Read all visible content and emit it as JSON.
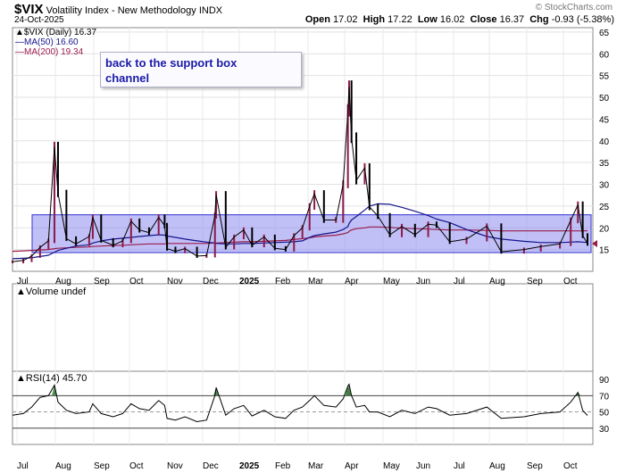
{
  "header": {
    "symbol": "$VIX",
    "name": "Volatility Index - New Methodology",
    "exchange": "INDX",
    "date": "24-Oct-2025",
    "open_label": "Open",
    "open": "17.02",
    "high_label": "High",
    "high": "17.22",
    "low_label": "Low",
    "low": "16.02",
    "close_label": "Close",
    "close": "16.37",
    "chg_label": "Chg",
    "chg": "-0.93 (-5.38%)",
    "brand": "© StockCharts.com"
  },
  "legend": {
    "price": "$VIX (Daily) 16.37",
    "ma50": "MA(50) 16.60",
    "ma200": "MA(200) 19.34",
    "volume": "Volume undef",
    "rsi": "RSI(14) 45.70"
  },
  "annotation": {
    "line1": "back to the support box",
    "line2": "channel"
  },
  "colors": {
    "price": "#000000",
    "price_up": "#8b1a4a",
    "ma50": "#14148c",
    "ma200": "#9b1b4b",
    "box_fill": "#8c8cf0",
    "box_stroke": "#5050d8",
    "rsi_line": "#000000",
    "rsi_overbought": "#3a7a3a"
  },
  "chart_data": [
    {
      "type": "line",
      "title": "$VIX (Daily) 16.37",
      "x_tick_labels": [
        "Jul",
        "Aug",
        "Sep",
        "Oct",
        "Nov",
        "Dec",
        "2025",
        "Feb",
        "Mar",
        "Apr",
        "May",
        "Jun",
        "Jul",
        "Aug",
        "Sep",
        "Oct"
      ],
      "y_ticks": [
        15,
        20,
        25,
        30,
        35,
        40,
        45,
        50,
        55,
        60,
        65
      ],
      "ylim": [
        10,
        66
      ],
      "grid": true,
      "legend_position": "top-left",
      "x": [
        "2024-07-01",
        "2024-07-10",
        "2024-07-17",
        "2024-07-24",
        "2024-07-31",
        "2024-08-05",
        "2024-08-08",
        "2024-08-15",
        "2024-08-23",
        "2024-09-03",
        "2024-09-06",
        "2024-09-13",
        "2024-09-23",
        "2024-10-01",
        "2024-10-08",
        "2024-10-15",
        "2024-10-23",
        "2024-10-31",
        "2024-11-05",
        "2024-11-07",
        "2024-11-14",
        "2024-11-22",
        "2024-12-02",
        "2024-12-10",
        "2024-12-17",
        "2024-12-18",
        "2024-12-26",
        "2025-01-02",
        "2025-01-10",
        "2025-01-17",
        "2025-01-27",
        "2025-02-05",
        "2025-02-14",
        "2025-02-21",
        "2025-02-28",
        "2025-03-06",
        "2025-03-10",
        "2025-03-18",
        "2025-03-28",
        "2025-04-03",
        "2025-04-07",
        "2025-04-08",
        "2025-04-10",
        "2025-04-14",
        "2025-04-21",
        "2025-04-25",
        "2025-05-02",
        "2025-05-12",
        "2025-05-22",
        "2025-06-02",
        "2025-06-13",
        "2025-06-20",
        "2025-07-01",
        "2025-07-15",
        "2025-08-01",
        "2025-08-13",
        "2025-09-01",
        "2025-09-15",
        "2025-10-01",
        "2025-10-10",
        "2025-10-16",
        "2025-10-20",
        "2025-10-24"
      ],
      "series": [
        {
          "name": "$VIX (Daily) 16.37",
          "values": [
            12.2,
            12.5,
            13.5,
            15.5,
            17.0,
            38.6,
            27.9,
            17.5,
            16.3,
            18.0,
            22.4,
            17.1,
            16.0,
            17.0,
            21.5,
            19.5,
            18.9,
            22.4,
            20.5,
            15.2,
            14.6,
            15.2,
            13.5,
            13.6,
            22.8,
            27.6,
            15.5,
            17.9,
            19.5,
            16.0,
            17.9,
            15.3,
            15.0,
            18.2,
            20.0,
            24.9,
            27.8,
            21.8,
            21.8,
            30.0,
            46.98,
            52.3,
            40.7,
            30.9,
            33.8,
            24.8,
            22.7,
            18.4,
            20.3,
            18.4,
            20.8,
            20.6,
            16.8,
            17.4,
            20.4,
            14.5,
            15.0,
            15.7,
            16.3,
            21.7,
            25.3,
            18.2,
            16.37
          ]
        },
        {
          "name": "MA(50) 16.60",
          "values": [
            12.9,
            13.0,
            13.1,
            13.4,
            13.7,
            14.4,
            14.8,
            15.3,
            15.8,
            16.1,
            16.5,
            17.0,
            17.4,
            17.6,
            17.8,
            18.0,
            18.2,
            18.4,
            18.3,
            18.1,
            17.8,
            17.4,
            17.0,
            16.7,
            16.5,
            16.4,
            16.3,
            16.3,
            16.4,
            16.4,
            16.5,
            16.6,
            16.7,
            16.8,
            17.0,
            17.8,
            18.2,
            18.6,
            19.0,
            19.6,
            20.3,
            21.0,
            21.8,
            22.6,
            24.1,
            25.0,
            25.5,
            25.4,
            24.7,
            23.8,
            22.8,
            22.0,
            21.2,
            19.6,
            18.0,
            17.4,
            16.9,
            16.6,
            16.6,
            16.7,
            16.8,
            16.7,
            16.6
          ]
        },
        {
          "name": "MA(200) 19.34",
          "values": [
            14.6,
            14.7,
            14.8,
            14.9,
            15.0,
            15.2,
            15.3,
            15.4,
            15.5,
            15.6,
            15.7,
            15.8,
            15.9,
            16.0,
            16.1,
            16.2,
            16.3,
            16.3,
            16.3,
            16.4,
            16.4,
            16.4,
            16.4,
            16.4,
            16.5,
            16.5,
            16.6,
            16.7,
            16.8,
            16.8,
            16.9,
            17.0,
            17.1,
            17.3,
            17.5,
            17.7,
            17.9,
            18.1,
            18.3,
            18.6,
            18.9,
            19.2,
            19.5,
            19.8,
            20.0,
            20.2,
            20.2,
            20.1,
            19.9,
            19.8,
            19.7,
            19.6,
            19.5,
            19.5,
            19.4,
            19.3,
            19.3,
            19.3,
            19.3,
            19.3,
            19.3,
            19.3,
            19.34
          ]
        }
      ],
      "annotations": [
        "back to the support box",
        "channel"
      ],
      "support_box": {
        "y_from": 14.3,
        "y_to": 23.0
      }
    },
    {
      "type": "line",
      "title": "RSI(14) 45.70",
      "x_tick_labels": [
        "Jul",
        "Aug",
        "Sep",
        "Oct",
        "Nov",
        "Dec",
        "2025",
        "Feb",
        "Mar",
        "Apr",
        "May",
        "Jun",
        "Jul",
        "Aug",
        "Sep",
        "Oct"
      ],
      "y_ticks": [
        30,
        50,
        70,
        90
      ],
      "ylim": [
        10,
        100
      ],
      "reference_lines": [
        70,
        50,
        30
      ],
      "series": [
        {
          "name": "RSI(14) 45.70",
          "values": [
            46,
            48,
            56,
            68,
            70,
            83,
            62,
            52,
            48,
            50,
            60,
            48,
            44,
            48,
            60,
            54,
            52,
            64,
            58,
            42,
            40,
            44,
            38,
            40,
            70,
            80,
            46,
            54,
            58,
            45,
            52,
            44,
            42,
            52,
            56,
            64,
            70,
            58,
            56,
            66,
            82,
            84,
            70,
            56,
            58,
            50,
            50,
            44,
            52,
            48,
            56,
            54,
            46,
            48,
            56,
            42,
            44,
            48,
            50,
            62,
            74,
            52,
            45.7
          ]
        }
      ]
    }
  ]
}
